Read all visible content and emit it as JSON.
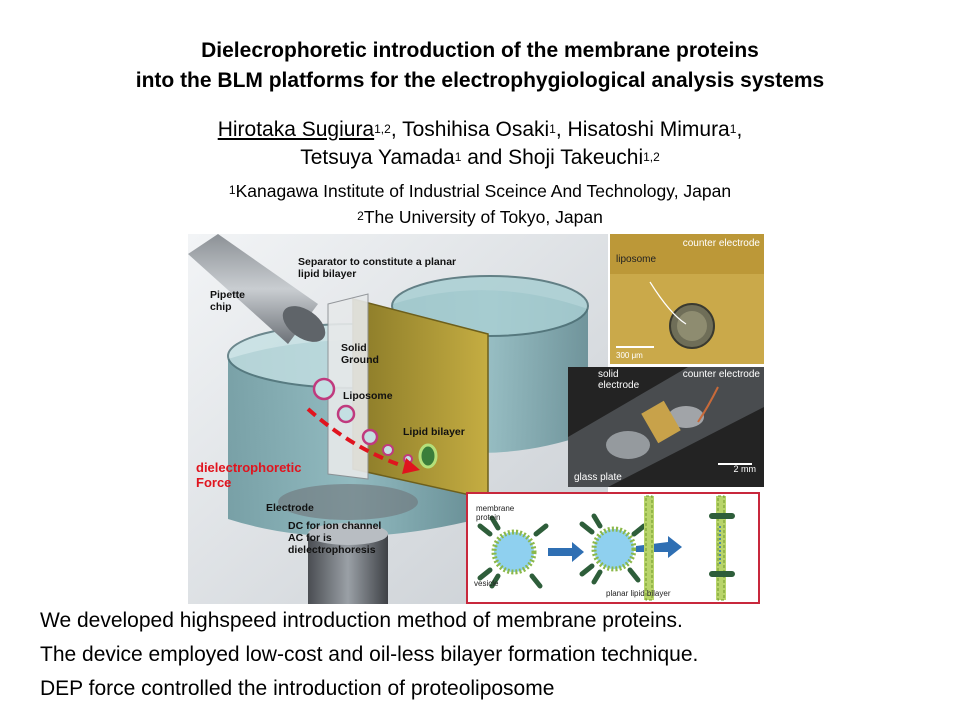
{
  "title": {
    "line1": "Dielecrophoretic introduction of the membrane proteins",
    "line2": "into the BLM platforms for the electrophygiological analysis systems"
  },
  "authors": {
    "a1_name": "Hirotaka Sugiura",
    "a1_sup": "1,2",
    "a2_name": ", Toshihisa Osaki",
    "a2_sup": "1",
    "a3_name": ", Hisatoshi Mimura",
    "a3_sup": "1",
    "a3_trail": ",",
    "a4_name": "Tetsuya Yamada",
    "a4_sup": "1",
    "a5_name": " and Shoji Takeuchi",
    "a5_sup": "1,2"
  },
  "affiliations": {
    "aff1_sup": "1",
    "aff1": "Kanagawa Institute of Industrial Sceince And Technology, Japan",
    "aff2_sup": "2",
    "aff2": "The University of Tokyo, Japan"
  },
  "figure": {
    "device_labels": {
      "separator": "Separator to constitute a planar lipid bilayer",
      "pipette": "Pipette chip",
      "solid_ground": "Solid Ground",
      "liposome": "Liposome",
      "lipid_bilayer": "Lipid bilayer",
      "dep_force_line1": "dielectrophoretic",
      "dep_force_line2": "Force",
      "electrode": "Electrode",
      "dc_line": "DC for ion channel",
      "ac_line": "AC for is",
      "dep_line": "dielectrophoresis"
    },
    "micrograph_top": {
      "counter_electrode": "counter electrode",
      "liposome": "liposome",
      "scale": "300 μm"
    },
    "photo_mid": {
      "solid_electrode": "solid electrode",
      "counter_electrode": "counter electrode",
      "glass_plate": "glass plate",
      "scale": "2 mm"
    },
    "schematic": {
      "membrane_protein": "membrane protein",
      "vesicle": "vesicle",
      "planar_lipid_bilayer": "planar lipid bilayer"
    },
    "colors": {
      "dep_red": "#e0141e",
      "schematic_border": "#c8283c"
    }
  },
  "bullets": [
    "We developed highspeed introduction method of membrane proteins.",
    "The device employed low-cost and oil-less bilayer formation technique.",
    "DEP force controlled the introduction of proteoliposome"
  ]
}
